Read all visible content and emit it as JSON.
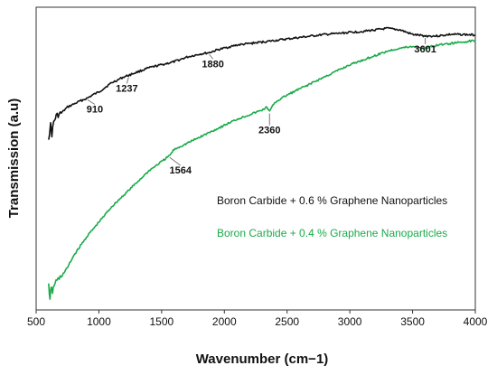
{
  "chart_data": {
    "type": "line",
    "title": "",
    "xlabel": "Wavenumber (cm−1)",
    "ylabel": "Transmission (a.u)",
    "xlim": [
      500,
      4000
    ],
    "xticks": [
      500,
      1000,
      1500,
      2000,
      2500,
      3000,
      3500,
      4000
    ],
    "grid": false,
    "legend_position": "right-middle",
    "series": [
      {
        "name": "Boron Carbide + 0.6 % Graphene Nanoparticles",
        "color": "#111111",
        "points": [
          [
            600,
            0.57
          ],
          [
            615,
            0.61
          ],
          [
            625,
            0.58
          ],
          [
            640,
            0.62
          ],
          [
            660,
            0.64
          ],
          [
            700,
            0.65
          ],
          [
            750,
            0.67
          ],
          [
            800,
            0.68
          ],
          [
            850,
            0.69
          ],
          [
            910,
            0.7
          ],
          [
            950,
            0.71
          ],
          [
            1000,
            0.72
          ],
          [
            1050,
            0.735
          ],
          [
            1100,
            0.75
          ],
          [
            1150,
            0.76
          ],
          [
            1200,
            0.77
          ],
          [
            1237,
            0.775
          ],
          [
            1300,
            0.785
          ],
          [
            1400,
            0.8
          ],
          [
            1500,
            0.81
          ],
          [
            1600,
            0.82
          ],
          [
            1700,
            0.835
          ],
          [
            1800,
            0.845
          ],
          [
            1880,
            0.85
          ],
          [
            1950,
            0.86
          ],
          [
            2000,
            0.865
          ],
          [
            2100,
            0.875
          ],
          [
            2200,
            0.88
          ],
          [
            2300,
            0.885
          ],
          [
            2400,
            0.89
          ],
          [
            2500,
            0.895
          ],
          [
            2600,
            0.9
          ],
          [
            2700,
            0.905
          ],
          [
            2800,
            0.91
          ],
          [
            2900,
            0.913
          ],
          [
            3000,
            0.917
          ],
          [
            3100,
            0.92
          ],
          [
            3200,
            0.925
          ],
          [
            3300,
            0.93
          ],
          [
            3400,
            0.925
          ],
          [
            3500,
            0.91
          ],
          [
            3601,
            0.905
          ],
          [
            3700,
            0.905
          ],
          [
            3800,
            0.91
          ],
          [
            3900,
            0.91
          ],
          [
            4000,
            0.908
          ]
        ]
      },
      {
        "name": "Boron Carbide + 0.4 % Graphene Nanoparticles",
        "color": "#1aaa4a",
        "points": [
          [
            600,
            0.08
          ],
          [
            610,
            0.04
          ],
          [
            620,
            0.07
          ],
          [
            630,
            0.06
          ],
          [
            650,
            0.09
          ],
          [
            700,
            0.11
          ],
          [
            750,
            0.14
          ],
          [
            800,
            0.18
          ],
          [
            900,
            0.24
          ],
          [
            1000,
            0.29
          ],
          [
            1100,
            0.34
          ],
          [
            1200,
            0.38
          ],
          [
            1300,
            0.42
          ],
          [
            1400,
            0.46
          ],
          [
            1500,
            0.49
          ],
          [
            1564,
            0.51
          ],
          [
            1600,
            0.53
          ],
          [
            1700,
            0.55
          ],
          [
            1800,
            0.57
          ],
          [
            1900,
            0.59
          ],
          [
            2000,
            0.61
          ],
          [
            2100,
            0.63
          ],
          [
            2200,
            0.645
          ],
          [
            2300,
            0.66
          ],
          [
            2340,
            0.67
          ],
          [
            2360,
            0.655
          ],
          [
            2380,
            0.67
          ],
          [
            2400,
            0.685
          ],
          [
            2500,
            0.71
          ],
          [
            2600,
            0.73
          ],
          [
            2700,
            0.75
          ],
          [
            2800,
            0.77
          ],
          [
            2900,
            0.79
          ],
          [
            3000,
            0.81
          ],
          [
            3100,
            0.825
          ],
          [
            3200,
            0.84
          ],
          [
            3300,
            0.855
          ],
          [
            3400,
            0.865
          ],
          [
            3500,
            0.87
          ],
          [
            3601,
            0.865
          ],
          [
            3700,
            0.875
          ],
          [
            3800,
            0.88
          ],
          [
            3900,
            0.885
          ],
          [
            4000,
            0.89
          ]
        ]
      }
    ],
    "annotations": [
      {
        "text": "910",
        "x": 910,
        "series": 0,
        "label_side": "below"
      },
      {
        "text": "1237",
        "x": 1237,
        "series": 0,
        "label_side": "below"
      },
      {
        "text": "1880",
        "x": 1880,
        "series": 0,
        "label_side": "below"
      },
      {
        "text": "3601",
        "x": 3601,
        "series": 0,
        "label_side": "below"
      },
      {
        "text": "2360",
        "x": 2360,
        "series": 1,
        "label_side": "below"
      },
      {
        "text": "1564",
        "x": 1564,
        "series": 1,
        "label_side": "below"
      }
    ]
  }
}
